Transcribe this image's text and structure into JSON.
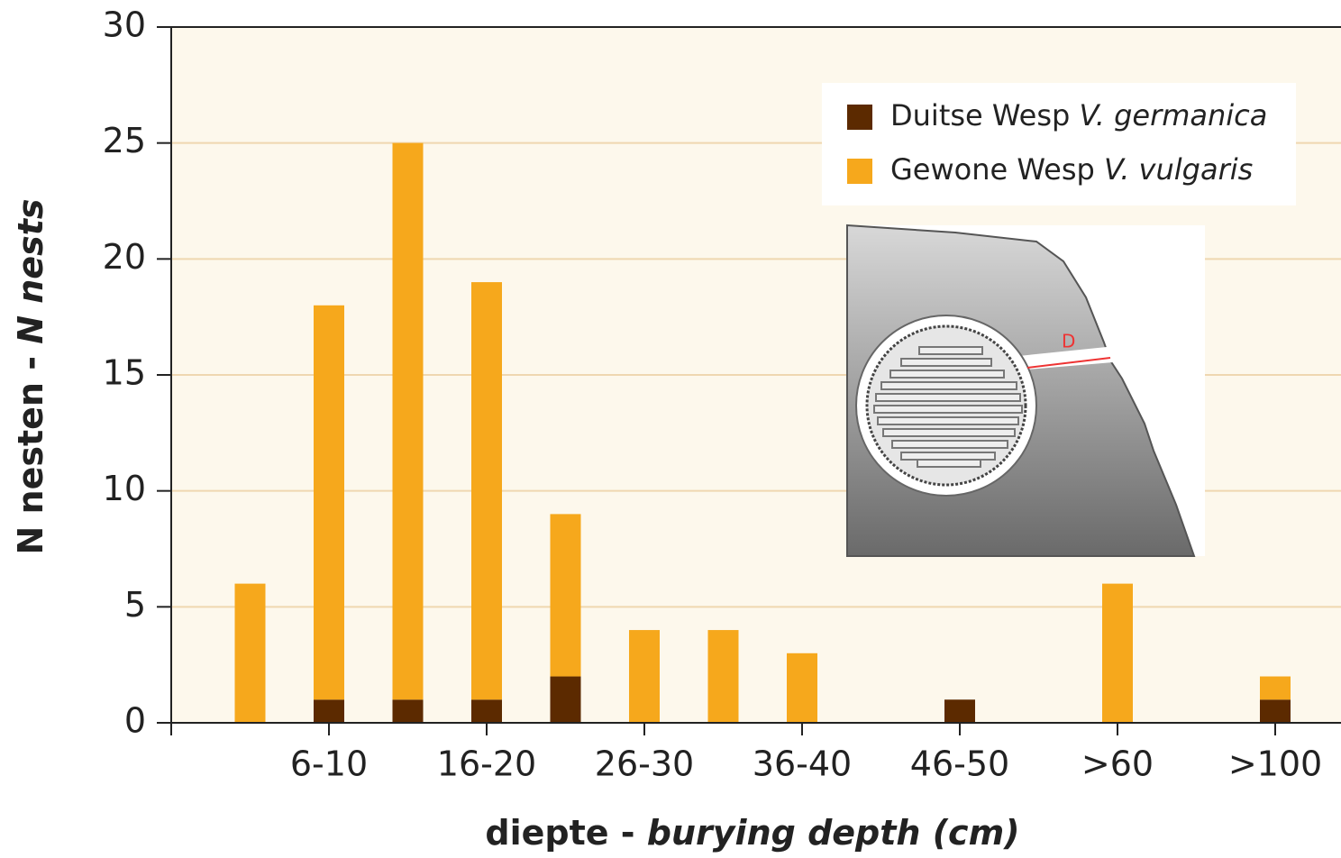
{
  "chart_data": {
    "type": "bar",
    "stacked": true,
    "xlabel": {
      "plain": "diepte -",
      "italic": "burying depth (cm)"
    },
    "ylabel": {
      "plain": "N nesten -",
      "italic": "N nests"
    },
    "categories": [
      null,
      "6-10",
      null,
      "16-20",
      null,
      "26-30",
      null,
      "36-40",
      null,
      "46-50",
      null,
      ">60",
      null,
      ">100"
    ],
    "series": [
      {
        "name": "Duitse Wesp",
        "species": "V. germanica",
        "color": "#5c2a00",
        "values": [
          0,
          1,
          1,
          1,
          2,
          0,
          0,
          0,
          0,
          1,
          0,
          0,
          0,
          1
        ]
      },
      {
        "name": "Gewone Wesp",
        "species": "V. vulgaris",
        "color": "#f6a81c",
        "values": [
          6,
          17,
          24,
          18,
          7,
          4,
          4,
          3,
          0,
          0,
          0,
          6,
          0,
          1
        ]
      }
    ],
    "ylim": [
      0,
      30
    ],
    "yticks": [
      0,
      5,
      10,
      15,
      20,
      25,
      30
    ],
    "grid": true,
    "inset_label": "D"
  }
}
